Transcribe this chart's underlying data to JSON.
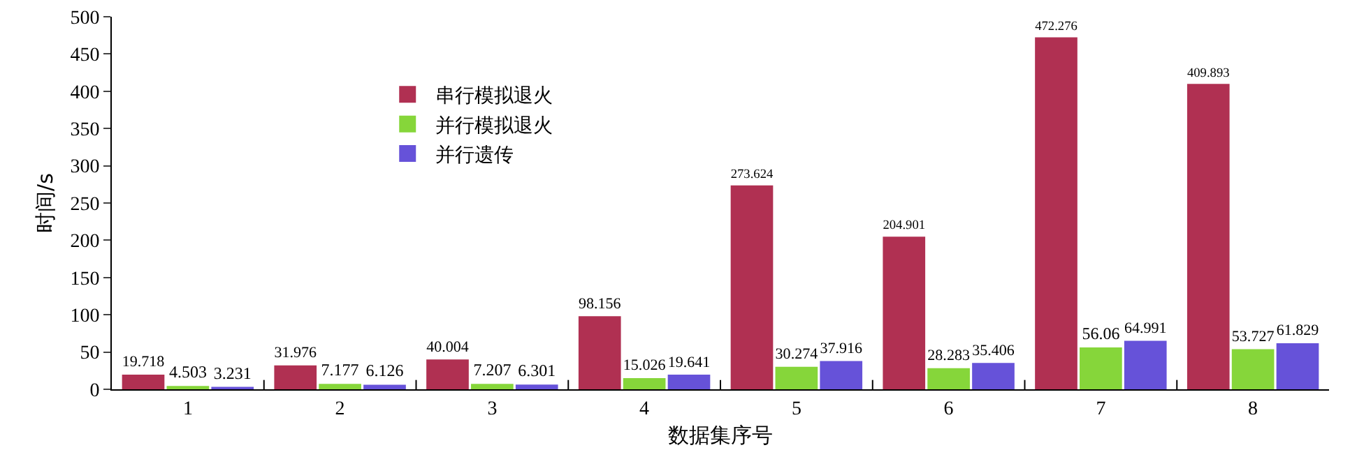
{
  "chart_data": {
    "type": "bar",
    "xlabel": "数据集序号",
    "ylabel": "时间/s",
    "categories": [
      "1",
      "2",
      "3",
      "4",
      "5",
      "6",
      "7",
      "8"
    ],
    "series": [
      {
        "name": "串行模拟退火",
        "color": "#b03052",
        "values": [
          19.718,
          31.976,
          40.004,
          98.156,
          273.624,
          204.901,
          472.276,
          409.893
        ]
      },
      {
        "name": "并行模拟退火",
        "color": "#86d63a",
        "values": [
          4.503,
          7.177,
          7.207,
          15.026,
          30.274,
          28.283,
          56.06,
          53.727
        ]
      },
      {
        "name": "并行遗传",
        "color": "#6652d9",
        "values": [
          3.231,
          6.126,
          6.301,
          19.641,
          37.916,
          35.406,
          64.991,
          61.829
        ]
      }
    ],
    "ylim": [
      0,
      500
    ],
    "yticks": [
      0,
      50,
      100,
      150,
      200,
      250,
      300,
      350,
      400,
      450,
      500
    ],
    "grid": false,
    "legend": "top left",
    "data_labels": true
  }
}
